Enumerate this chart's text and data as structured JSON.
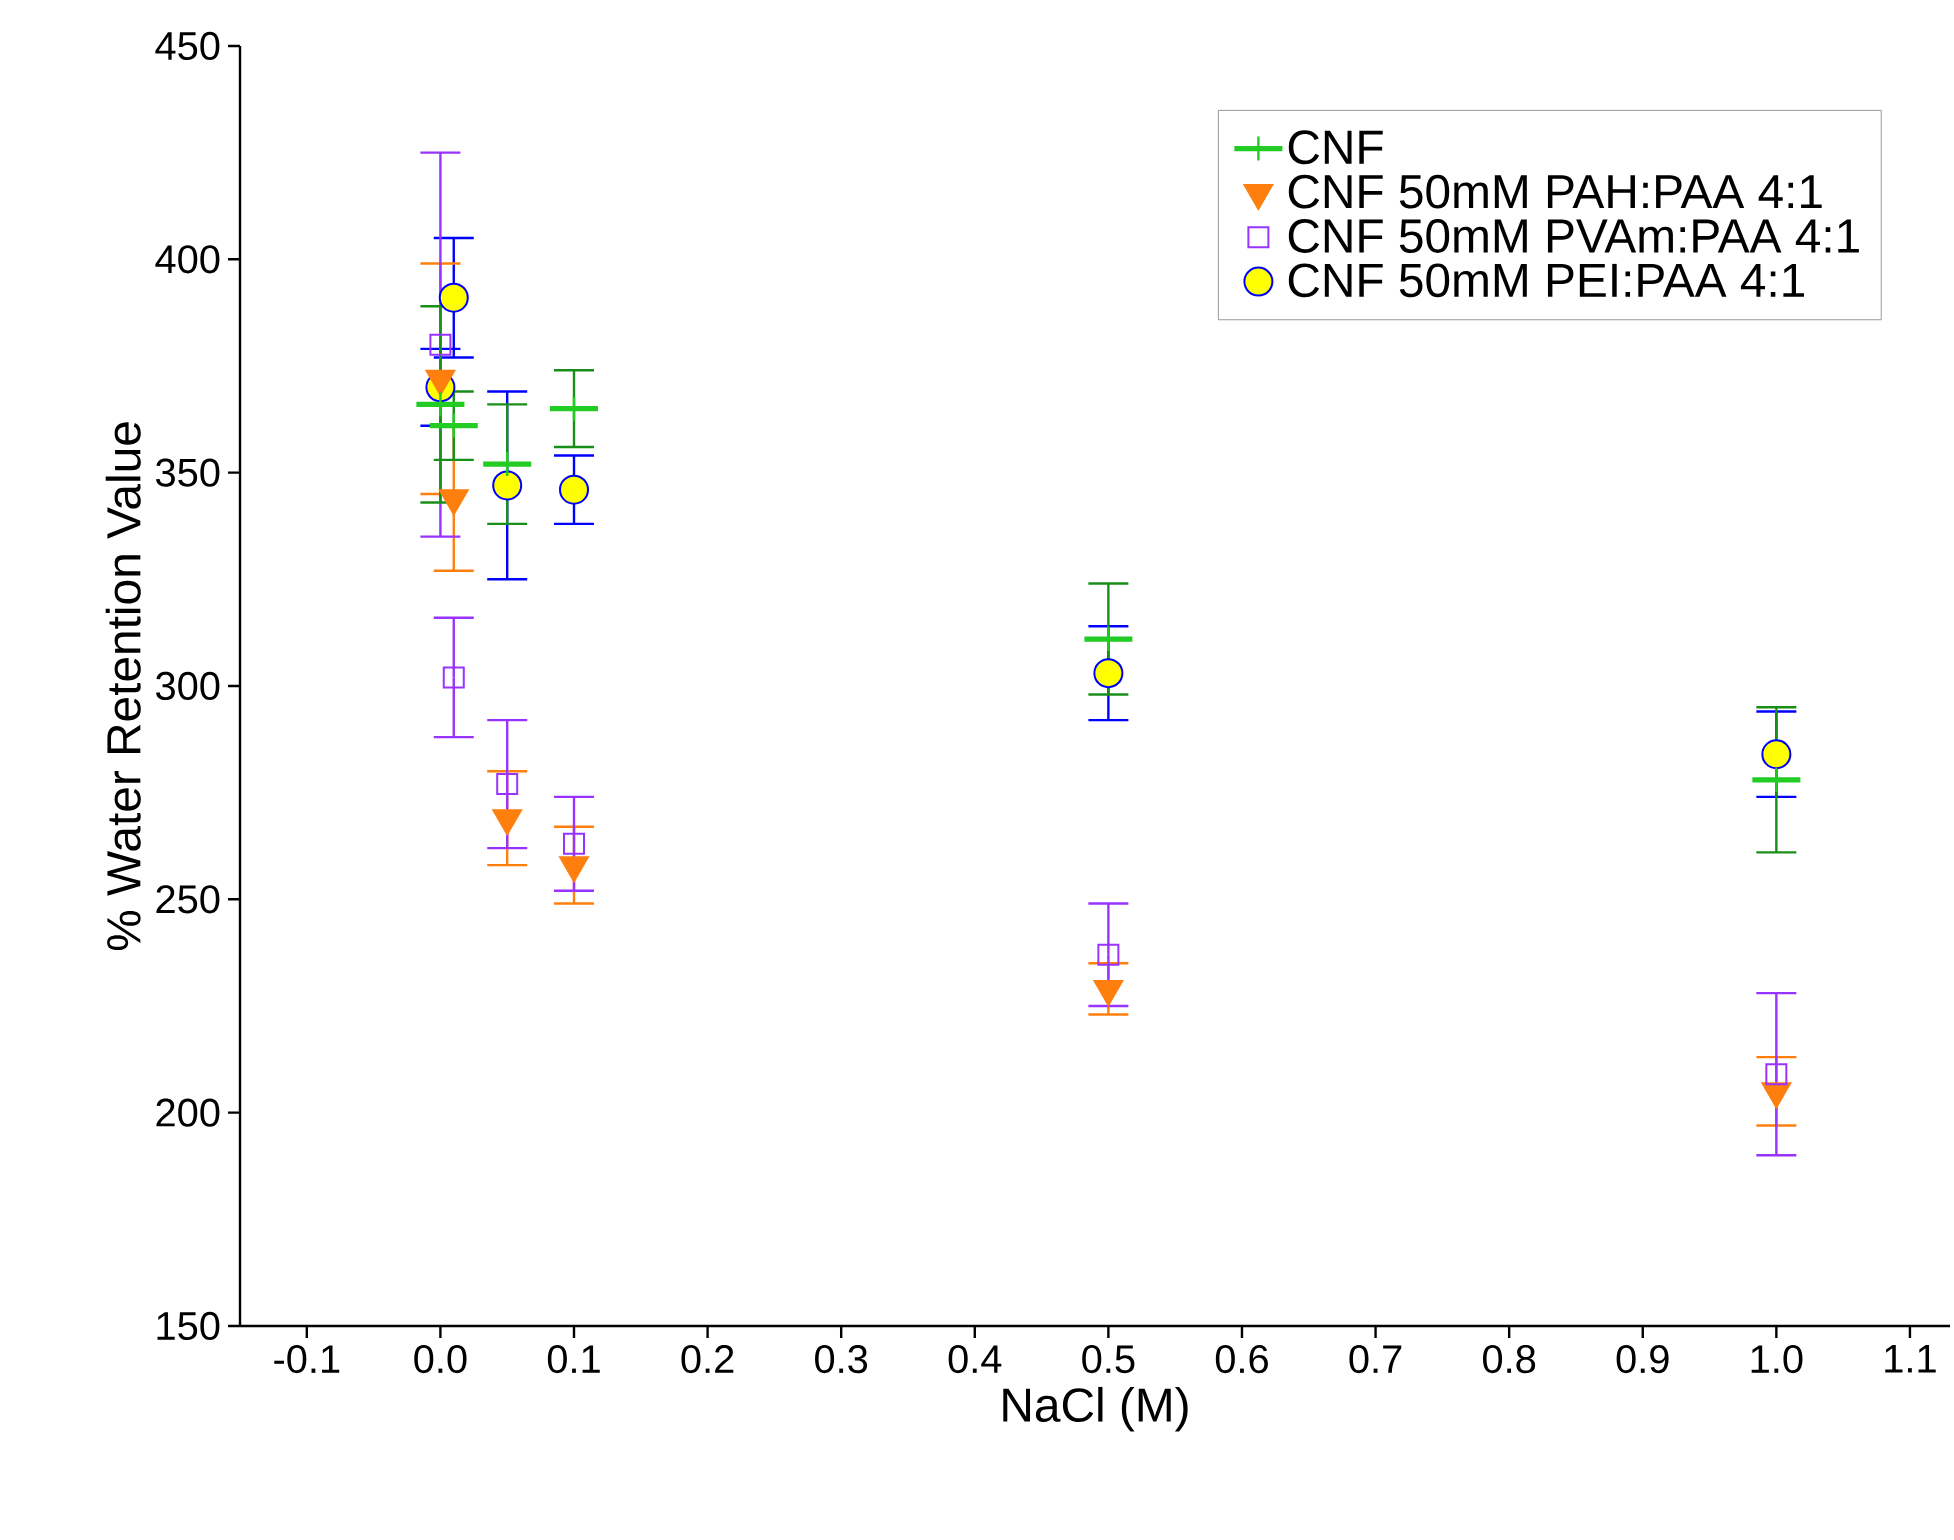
{
  "chart_data": {
    "type": "scatter",
    "xlabel": "NaCl (M)",
    "ylabel": "% Water Retention Value",
    "x": [
      0,
      0.01,
      0.05,
      0.1,
      0.5,
      1.0
    ],
    "xlim": [
      -0.15,
      1.13
    ],
    "ylim": [
      150,
      450
    ],
    "xticks": [
      {
        "value": -0.1,
        "label": "-0.1"
      },
      {
        "value": 0,
        "label": "0.0"
      },
      0.1,
      0.2,
      0.3,
      0.4,
      0.5,
      0.6,
      0.7,
      0.8,
      0.9,
      {
        "value": 1,
        "label": "1.0"
      },
      1.1
    ],
    "yticks": [
      150,
      200,
      250,
      300,
      350,
      400,
      450
    ],
    "legend": "top right",
    "grid": false,
    "series": [
      {
        "name": "CNF",
        "color": "#22cc22",
        "marker": "cross",
        "values": [
          366,
          361,
          352,
          365,
          311,
          278
        ],
        "errors": [
          23,
          8,
          14,
          9,
          13,
          17
        ]
      },
      {
        "name": "CNF 50mM PAH:PAA 4:1",
        "color": "#ff7f0e",
        "marker": "triangle",
        "values": [
          372,
          344,
          269,
          258,
          229,
          205
        ],
        "errors": [
          27,
          17,
          11,
          9,
          6,
          8
        ]
      },
      {
        "name": "CNF 50mM PVAm:PAA 4:1",
        "color": "#9933ff",
        "marker": "square",
        "values": [
          380,
          302,
          277,
          263,
          237,
          209
        ],
        "errors": [
          45,
          14,
          15,
          11,
          12,
          19
        ]
      },
      {
        "name": "CNF 50mM PEI:PAA 4:1",
        "color": "#ffff00",
        "marker": "circle",
        "values": [
          370,
          391,
          347,
          346,
          303,
          284
        ],
        "errors": [
          9,
          14,
          22,
          8,
          11,
          10
        ]
      }
    ]
  }
}
